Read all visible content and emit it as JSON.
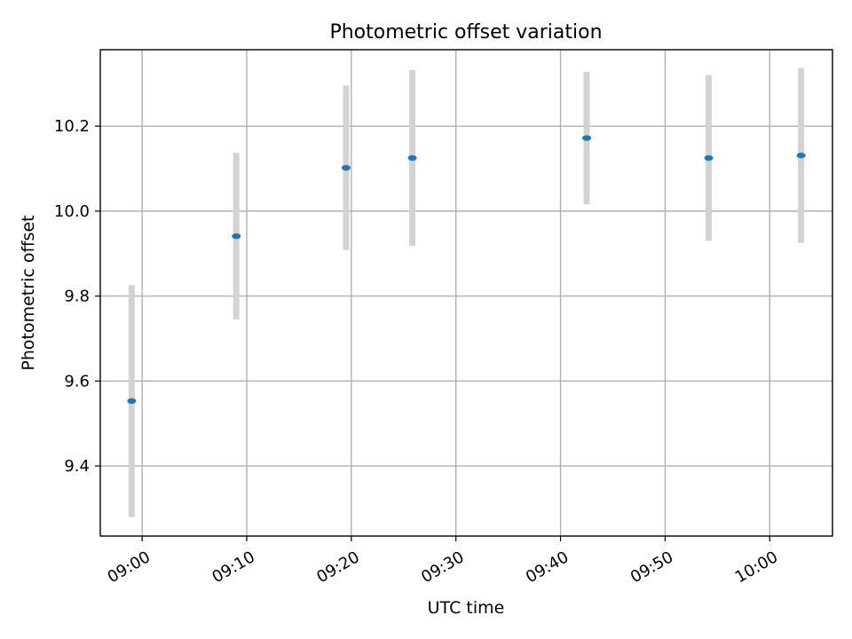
{
  "chart_data": {
    "type": "scatter",
    "title": "Photometric offset variation",
    "xlabel": "UTC time",
    "ylabel": "Photometric offset",
    "grid": true,
    "x_ticks": [
      "09:00",
      "09:10",
      "09:20",
      "09:30",
      "09:40",
      "09:50",
      "10:00"
    ],
    "y_ticks": [
      "9.4",
      "9.6",
      "9.8",
      "10.0",
      "10.2"
    ],
    "xlim": [
      "08:56",
      "10:06"
    ],
    "ylim": [
      9.235,
      10.38
    ],
    "series": [
      {
        "marker_color": "#1f77b4",
        "errorbar_color": "#d3d3d3",
        "points": [
          {
            "x": "08:59",
            "y": 9.553,
            "err": 0.273
          },
          {
            "x": "09:09",
            "y": 9.941,
            "err": 0.196
          },
          {
            "x": "09:19:30",
            "y": 10.102,
            "err": 0.194
          },
          {
            "x": "09:25:50",
            "y": 10.125,
            "err": 0.207
          },
          {
            "x": "09:42:30",
            "y": 10.172,
            "err": 0.156
          },
          {
            "x": "09:54:10",
            "y": 10.125,
            "err": 0.195
          },
          {
            "x": "10:03",
            "y": 10.131,
            "err": 0.206
          }
        ]
      }
    ]
  }
}
